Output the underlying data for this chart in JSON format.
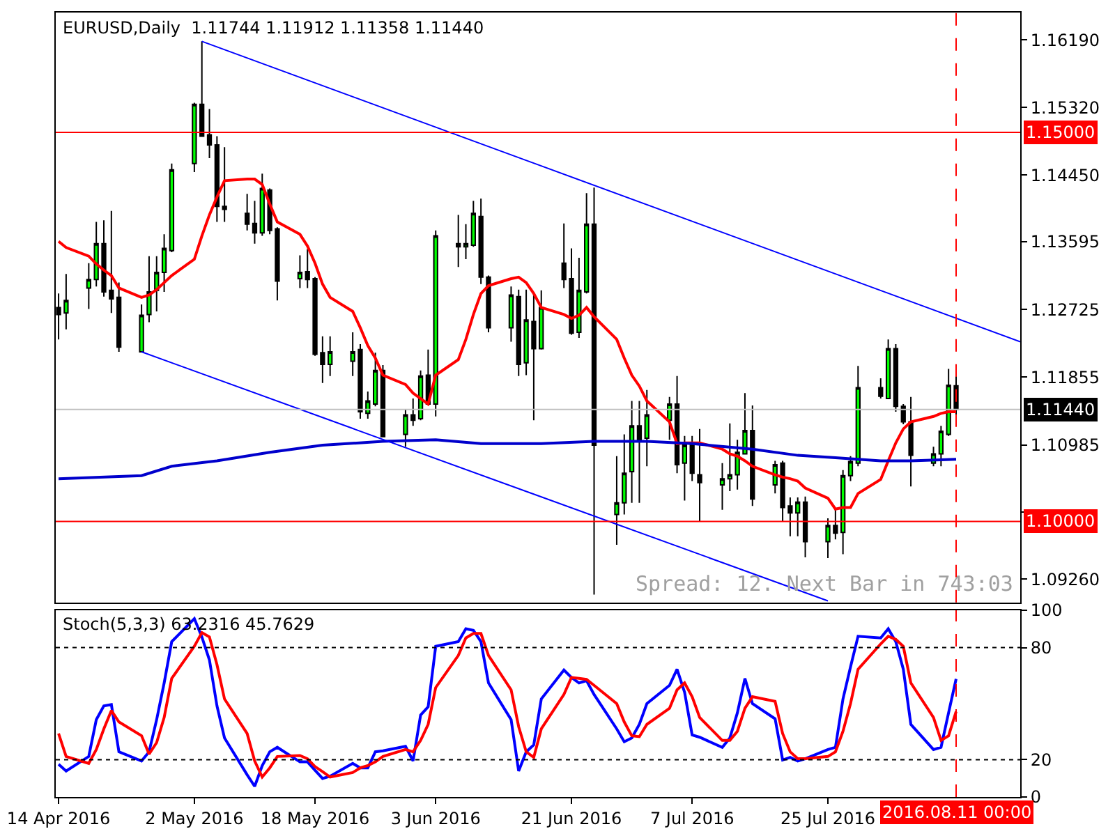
{
  "chart_data": [
    {
      "type": "candlestick",
      "title": "EURUSD,Daily  1.11744 1.11912 1.11358 1.11440",
      "x": [
        "2016-04-14",
        "2016-04-15",
        "2016-04-18",
        "2016-04-19",
        "2016-04-20",
        "2016-04-21",
        "2016-04-22",
        "2016-04-25",
        "2016-04-26",
        "2016-04-27",
        "2016-04-28",
        "2016-04-29",
        "2016-05-02",
        "2016-05-03",
        "2016-05-04",
        "2016-05-05",
        "2016-05-06",
        "2016-05-09",
        "2016-05-10",
        "2016-05-11",
        "2016-05-12",
        "2016-05-13",
        "2016-05-16",
        "2016-05-17",
        "2016-05-18",
        "2016-05-19",
        "2016-05-20",
        "2016-05-23",
        "2016-05-24",
        "2016-05-25",
        "2016-05-26",
        "2016-05-27",
        "2016-05-30",
        "2016-05-31",
        "2016-06-01",
        "2016-06-02",
        "2016-06-03",
        "2016-06-06",
        "2016-06-07",
        "2016-06-08",
        "2016-06-09",
        "2016-06-10",
        "2016-06-13",
        "2016-06-14",
        "2016-06-15",
        "2016-06-16",
        "2016-06-17",
        "2016-06-20",
        "2016-06-21",
        "2016-06-22",
        "2016-06-23",
        "2016-06-24",
        "2016-06-27",
        "2016-06-28",
        "2016-06-29",
        "2016-06-30",
        "2016-07-01",
        "2016-07-04",
        "2016-07-05",
        "2016-07-06",
        "2016-07-07",
        "2016-07-08",
        "2016-07-11",
        "2016-07-12",
        "2016-07-13",
        "2016-07-14",
        "2016-07-15",
        "2016-07-18",
        "2016-07-19",
        "2016-07-20",
        "2016-07-21",
        "2016-07-22",
        "2016-07-25",
        "2016-07-26",
        "2016-07-27",
        "2016-07-28",
        "2016-07-29",
        "2016-08-01",
        "2016-08-02",
        "2016-08-03",
        "2016-08-04",
        "2016-08-05",
        "2016-08-08",
        "2016-08-09",
        "2016-08-10",
        "2016-08-11"
      ],
      "ohlc": [
        [
          1.1275,
          1.1293,
          1.1234,
          1.1266
        ],
        [
          1.1268,
          1.1318,
          1.1247,
          1.1284
        ],
        [
          1.13,
          1.1332,
          1.1273,
          1.1311
        ],
        [
          1.1311,
          1.1385,
          1.1302,
          1.1357
        ],
        [
          1.1357,
          1.1387,
          1.1289,
          1.1295
        ],
        [
          1.1297,
          1.1399,
          1.1268,
          1.1286
        ],
        [
          1.1288,
          1.1307,
          1.1218,
          1.1224
        ],
        [
          1.1218,
          1.1279,
          1.1218,
          1.1265
        ],
        [
          1.1266,
          1.1341,
          1.1256,
          1.1295
        ],
        [
          1.1297,
          1.1341,
          1.127,
          1.132
        ],
        [
          1.132,
          1.1369,
          1.1295,
          1.1351
        ],
        [
          1.1348,
          1.146,
          1.1346,
          1.1452
        ],
        [
          1.146,
          1.1538,
          1.1449,
          1.1536
        ],
        [
          1.1536,
          1.1617,
          1.1495,
          1.1495
        ],
        [
          1.1497,
          1.153,
          1.1467,
          1.1484
        ],
        [
          1.1484,
          1.1495,
          1.1385,
          1.1405
        ],
        [
          1.1405,
          1.1481,
          1.1385,
          1.1401
        ],
        [
          1.1396,
          1.1421,
          1.1374,
          1.1382
        ],
        [
          1.1383,
          1.1412,
          1.1357,
          1.1371
        ],
        [
          1.1371,
          1.1447,
          1.1367,
          1.1428
        ],
        [
          1.1426,
          1.1428,
          1.1369,
          1.1374
        ],
        [
          1.1376,
          1.1378,
          1.1284,
          1.1309
        ],
        [
          1.1312,
          1.1342,
          1.13,
          1.132
        ],
        [
          1.1321,
          1.135,
          1.13,
          1.1311
        ],
        [
          1.1312,
          1.1314,
          1.1213,
          1.1215
        ],
        [
          1.1217,
          1.1238,
          1.1178,
          1.1202
        ],
        [
          1.1202,
          1.1238,
          1.1187,
          1.1218
        ],
        [
          1.1206,
          1.1243,
          1.1187,
          1.1218
        ],
        [
          1.1221,
          1.1228,
          1.1132,
          1.1141
        ],
        [
          1.1139,
          1.1167,
          1.1132,
          1.1155
        ],
        [
          1.1151,
          1.1217,
          1.1148,
          1.1194
        ],
        [
          1.1194,
          1.1201,
          1.1109,
          1.1109
        ],
        [
          1.1112,
          1.1144,
          1.1096,
          1.1137
        ],
        [
          1.1137,
          1.1158,
          1.1123,
          1.113
        ],
        [
          1.1132,
          1.1194,
          1.113,
          1.1187
        ],
        [
          1.1188,
          1.1221,
          1.1149,
          1.1151
        ],
        [
          1.1151,
          1.1374,
          1.1135,
          1.1367
        ],
        [
          1.1357,
          1.1394,
          1.1327,
          1.1353
        ],
        [
          1.1353,
          1.1382,
          1.1337,
          1.1357
        ],
        [
          1.1355,
          1.1412,
          1.1353,
          1.1396
        ],
        [
          1.1392,
          1.1415,
          1.1305,
          1.1314
        ],
        [
          1.1314,
          1.1316,
          1.1243,
          1.1249
        ],
        [
          1.1249,
          1.1302,
          1.1231,
          1.1291
        ],
        [
          1.1289,
          1.1298,
          1.1187,
          1.1202
        ],
        [
          1.1204,
          1.1298,
          1.1188,
          1.1259
        ],
        [
          1.1257,
          1.1295,
          1.113,
          1.1222
        ],
        [
          1.1222,
          1.1297,
          1.1221,
          1.1275
        ],
        [
          1.1332,
          1.1383,
          1.13,
          1.1311
        ],
        [
          1.1312,
          1.1351,
          1.124,
          1.1242
        ],
        [
          1.1243,
          1.1339,
          1.1236,
          1.1297
        ],
        [
          1.1295,
          1.1422,
          1.1293,
          1.1382
        ],
        [
          1.1382,
          1.1429,
          1.0906,
          1.1098
        ],
        [
          1.1009,
          1.1084,
          1.097,
          1.1024
        ],
        [
          1.1024,
          1.1112,
          1.1009,
          1.1062
        ],
        [
          1.1064,
          1.1155,
          1.1024,
          1.1123
        ],
        [
          1.1123,
          1.1155,
          1.1024,
          1.1105
        ],
        [
          1.1107,
          1.1169,
          1.1071,
          1.1137
        ],
        [
          1.113,
          1.116,
          1.1105,
          1.1151
        ],
        [
          1.1151,
          1.1187,
          1.1062,
          1.1073
        ],
        [
          1.1075,
          1.111,
          1.1027,
          1.1098
        ],
        [
          1.11,
          1.111,
          1.1052,
          1.1062
        ],
        [
          1.106,
          1.1119,
          1.1,
          1.105
        ],
        [
          1.1047,
          1.1075,
          1.1015,
          1.1055
        ],
        [
          1.1055,
          1.1126,
          1.1039,
          1.106
        ],
        [
          1.106,
          1.1105,
          1.1041,
          1.1089
        ],
        [
          1.1087,
          1.1165,
          1.1086,
          1.1117
        ],
        [
          1.1117,
          1.1149,
          1.102,
          1.1029
        ],
        [
          1.1047,
          1.1078,
          1.1036,
          1.1073
        ],
        [
          1.1075,
          1.1078,
          1.1,
          1.1018
        ],
        [
          1.102,
          1.1031,
          1.0981,
          1.1011
        ],
        [
          1.1011,
          1.1031,
          1.0981,
          1.1025
        ],
        [
          1.1025,
          1.1032,
          1.0954,
          1.0974
        ],
        [
          1.0974,
          1.1004,
          1.0953,
          1.0995
        ],
        [
          1.0995,
          1.1016,
          1.0977,
          1.0985
        ],
        [
          1.0986,
          1.1066,
          1.0958,
          1.1059
        ],
        [
          1.1059,
          1.1084,
          1.1052,
          1.1077
        ],
        [
          1.1075,
          1.12,
          1.1071,
          1.1172
        ],
        [
          1.1172,
          1.1184,
          1.1158,
          1.1161
        ],
        [
          1.1158,
          1.1234,
          1.1158,
          1.1222
        ],
        [
          1.1222,
          1.1228,
          1.1141,
          1.1148
        ],
        [
          1.1148,
          1.1151,
          1.1125,
          1.1128
        ],
        [
          1.1128,
          1.116,
          1.1045,
          1.1085
        ],
        [
          1.1075,
          1.1096,
          1.1071,
          1.1087
        ],
        [
          1.1087,
          1.1123,
          1.1071,
          1.1116
        ],
        [
          1.1112,
          1.1196,
          1.111,
          1.1175
        ],
        [
          1.11744,
          1.11912,
          1.11358,
          1.1144
        ]
      ],
      "series": [
        {
          "type": "line",
          "color": "#ff0000",
          "values": [
            1.136,
            1.1352,
            1.1341,
            1.1331,
            1.1323,
            1.1316,
            1.13,
            1.1288,
            1.1291,
            1.1298,
            1.1307,
            1.1316,
            1.1337,
            1.1367,
            1.1394,
            1.1417,
            1.1438,
            1.144,
            1.144,
            1.1433,
            1.1408,
            1.1385,
            1.1369,
            1.1354,
            1.1332,
            1.1305,
            1.1288,
            1.127,
            1.1249,
            1.1226,
            1.121,
            1.1188,
            1.1176,
            1.1165,
            1.1158,
            1.1151,
            1.1188,
            1.1208,
            1.1234,
            1.1266,
            1.1293,
            1.1303,
            1.1312,
            1.1314,
            1.1307,
            1.1293,
            1.1275,
            1.1266,
            1.1261,
            1.1265,
            1.1275,
            1.1263,
            1.1234,
            1.121,
            1.1188,
            1.1174,
            1.1155,
            1.1128,
            1.11,
            1.1101,
            1.1101,
            1.1101,
            1.1093,
            1.1087,
            1.1084,
            1.1078,
            1.1071,
            1.106,
            1.1057,
            1.1055,
            1.1052,
            1.1043,
            1.103,
            1.1016,
            1.1018,
            1.1018,
            1.1036,
            1.1054,
            1.1078,
            1.1101,
            1.1119,
            1.1128,
            1.1135,
            1.1139,
            1.1141,
            1.1141
          ]
        },
        {
          "type": "line",
          "color": "#0000cc",
          "x": [
            "2016-04-14",
            "2016-04-25",
            "2016-04-29",
            "2016-05-05",
            "2016-05-12",
            "2016-05-19",
            "2016-05-27",
            "2016-06-03",
            "2016-06-09",
            "2016-06-17",
            "2016-06-24",
            "2016-07-01",
            "2016-07-07",
            "2016-07-15",
            "2016-07-21",
            "2016-07-26",
            "2016-08-01",
            "2016-08-05",
            "2016-08-11"
          ],
          "values": [
            1.1055,
            1.1059,
            1.1071,
            1.1078,
            1.1089,
            1.1098,
            1.1103,
            1.1105,
            1.11,
            1.11,
            1.1103,
            1.1103,
            1.11,
            1.1093,
            1.1085,
            1.1082,
            1.1078,
            1.1078,
            1.108
          ]
        },
        {
          "type": "line",
          "color": "#0000ff",
          "x": [
            "2016-05-03",
            "2016-08-19T12:00"
          ],
          "values": [
            1.1617,
            1.1231
          ]
        },
        {
          "type": "line",
          "color": "#0000ff",
          "x": [
            "2016-04-25",
            "2016-07-25"
          ],
          "values": [
            1.1218,
            1.0898
          ]
        }
      ],
      "xlim": [
        "2016-04-13T15:00",
        "2016-08-19T12:00"
      ],
      "ylim": [
        1.0896,
        1.1654
      ],
      "yticks": [
        {
          "value": 1.1619,
          "label": "1.16190"
        },
        {
          "value": 1.1532,
          "label": "1.15320"
        },
        {
          "value": 1.1445,
          "label": "1.14450"
        },
        {
          "value": 1.13595,
          "label": "1.13595"
        },
        {
          "value": 1.12725,
          "label": "1.12725"
        },
        {
          "value": 1.11855,
          "label": "1.11855"
        },
        {
          "value": 1.10985,
          "label": "1.10985"
        },
        {
          "value": 1.1012,
          "label": null
        },
        {
          "value": 1.0926,
          "label": "1.09260"
        }
      ],
      "ref_lines": [
        {
          "axis": "y",
          "value": 1.15,
          "label": "1.15000",
          "color": "#ff0000"
        },
        {
          "axis": "y",
          "value": 1.1,
          "label": "1.10000",
          "color": "#ff0000"
        },
        {
          "axis": "y",
          "value": 1.1144,
          "label": "1.11440",
          "color": "#c0c0c0"
        },
        {
          "axis": "x",
          "value": "2016-08-11",
          "color": "#ff0000",
          "line_style": "dashed"
        }
      ],
      "annotations": [
        "Spread: 12. Next Bar in 743:03"
      ],
      "tick_labels": "y",
      "grid": false,
      "legend": false
    },
    {
      "type": "line",
      "title": "Stoch(5,3,3) 63.2316 45.7629",
      "x": [
        "2016-04-14",
        "2016-04-15",
        "2016-04-18",
        "2016-04-19",
        "2016-04-20",
        "2016-04-21",
        "2016-04-22",
        "2016-04-25",
        "2016-04-26",
        "2016-04-27",
        "2016-04-28",
        "2016-04-29",
        "2016-05-02",
        "2016-05-03",
        "2016-05-04",
        "2016-05-05",
        "2016-05-06",
        "2016-05-09",
        "2016-05-10",
        "2016-05-11",
        "2016-05-12",
        "2016-05-13",
        "2016-05-16",
        "2016-05-17",
        "2016-05-18",
        "2016-05-19",
        "2016-05-20",
        "2016-05-23",
        "2016-05-24",
        "2016-05-25",
        "2016-05-26",
        "2016-05-27",
        "2016-05-30",
        "2016-05-31",
        "2016-06-01",
        "2016-06-02",
        "2016-06-03",
        "2016-06-06",
        "2016-06-07",
        "2016-06-08",
        "2016-06-09",
        "2016-06-10",
        "2016-06-13",
        "2016-06-14",
        "2016-06-15",
        "2016-06-16",
        "2016-06-17",
        "2016-06-20",
        "2016-06-21",
        "2016-06-22",
        "2016-06-23",
        "2016-06-24",
        "2016-06-27",
        "2016-06-28",
        "2016-06-29",
        "2016-06-30",
        "2016-07-01",
        "2016-07-04",
        "2016-07-05",
        "2016-07-06",
        "2016-07-07",
        "2016-07-08",
        "2016-07-11",
        "2016-07-12",
        "2016-07-13",
        "2016-07-14",
        "2016-07-15",
        "2016-07-18",
        "2016-07-19",
        "2016-07-20",
        "2016-07-21",
        "2016-07-22",
        "2016-07-25",
        "2016-07-26",
        "2016-07-27",
        "2016-07-28",
        "2016-07-29",
        "2016-08-01",
        "2016-08-02",
        "2016-08-03",
        "2016-08-04",
        "2016-08-05",
        "2016-08-08",
        "2016-08-09",
        "2016-08-10",
        "2016-08-11"
      ],
      "series": [
        {
          "color": "#0000ff",
          "values": [
            17.5,
            13.9,
            21.7,
            41.4,
            48.8,
            49.5,
            24.2,
            19.3,
            24.2,
            41.4,
            61.1,
            83.2,
            95.5,
            85.7,
            73.4,
            48.8,
            31.6,
            11.9,
            5.7,
            16.8,
            24.2,
            26.6,
            18.8,
            18.8,
            14.3,
            9.9,
            11.1,
            18.0,
            15.6,
            15.6,
            24.2,
            24.7,
            27.1,
            19.3,
            43.9,
            48.3,
            80.7,
            83.2,
            90.1,
            89.3,
            83.2,
            61.1,
            41.4,
            13.9,
            24.2,
            27.9,
            52.5,
            68.0,
            64.0,
            61.1,
            62.3,
            54.9,
            36.5,
            29.6,
            31.6,
            38.9,
            50.0,
            59.8,
            68.4,
            56.1,
            33.2,
            32.0,
            26.6,
            31.6,
            45.1,
            63.5,
            50.0,
            41.9,
            19.8,
            21.2,
            19.3,
            20.5,
            25.4,
            26.6,
            52.5,
            69.7,
            86.1,
            85.2,
            90.1,
            83.2,
            68.4,
            38.9,
            25.4,
            26.6,
            45.1,
            63.2316
          ]
        },
        {
          "color": "#ff0000",
          "values": [
            34.0,
            21.7,
            18.0,
            25.4,
            36.5,
            46.3,
            40.2,
            32.8,
            23.0,
            29.1,
            42.6,
            63.5,
            80.7,
            88.1,
            85.7,
            70.9,
            52.5,
            34.0,
            19.3,
            10.7,
            15.6,
            21.7,
            22.2,
            20.5,
            16.3,
            13.6,
            10.7,
            13.1,
            15.6,
            16.8,
            18.8,
            21.7,
            25.4,
            24.2,
            30.3,
            38.9,
            58.6,
            75.8,
            85.2,
            87.6,
            87.6,
            75.8,
            57.4,
            37.7,
            24.2,
            21.2,
            36.5,
            54.9,
            64.0,
            63.5,
            63.0,
            59.8,
            50.0,
            40.2,
            32.8,
            32.3,
            38.9,
            47.5,
            57.4,
            61.1,
            53.7,
            42.6,
            30.3,
            30.3,
            35.2,
            47.5,
            53.7,
            51.2,
            34.0,
            24.2,
            20.5,
            20.5,
            21.7,
            24.2,
            35.2,
            50.0,
            68.4,
            82.0,
            86.1,
            84.4,
            80.7,
            61.1,
            42.6,
            30.3,
            32.8,
            45.7629
          ]
        }
      ],
      "xlim": [
        "2016-04-13T15:00",
        "2016-08-19T12:00"
      ],
      "xticks": [
        {
          "value": "2016-04-14",
          "label": "14 Apr 2016"
        },
        {
          "value": "2016-05-02",
          "label": "2 May 2016"
        },
        {
          "value": "2016-05-18",
          "label": "18 May 2016"
        },
        {
          "value": "2016-06-03",
          "label": "3 Jun 2016"
        },
        {
          "value": "2016-06-21",
          "label": "21 Jun 2016"
        },
        {
          "value": "2016-07-07",
          "label": "7 Jul 2016"
        },
        {
          "value": "2016-07-25",
          "label": "25 Jul 2016"
        }
      ],
      "ylim": [
        0,
        100
      ],
      "yticks": [
        100,
        80,
        20,
        0
      ],
      "ref_lines": [
        {
          "axis": "y",
          "value": 80,
          "color": "#000000",
          "line_style": "dotted"
        },
        {
          "axis": "y",
          "value": 20,
          "color": "#000000",
          "line_style": "dotted"
        },
        {
          "axis": "x",
          "value": "2016-08-11",
          "label": "2016.08.11 00:00",
          "color": "#ff0000",
          "line_style": "dashed"
        }
      ],
      "grid": false,
      "legend": false
    }
  ]
}
